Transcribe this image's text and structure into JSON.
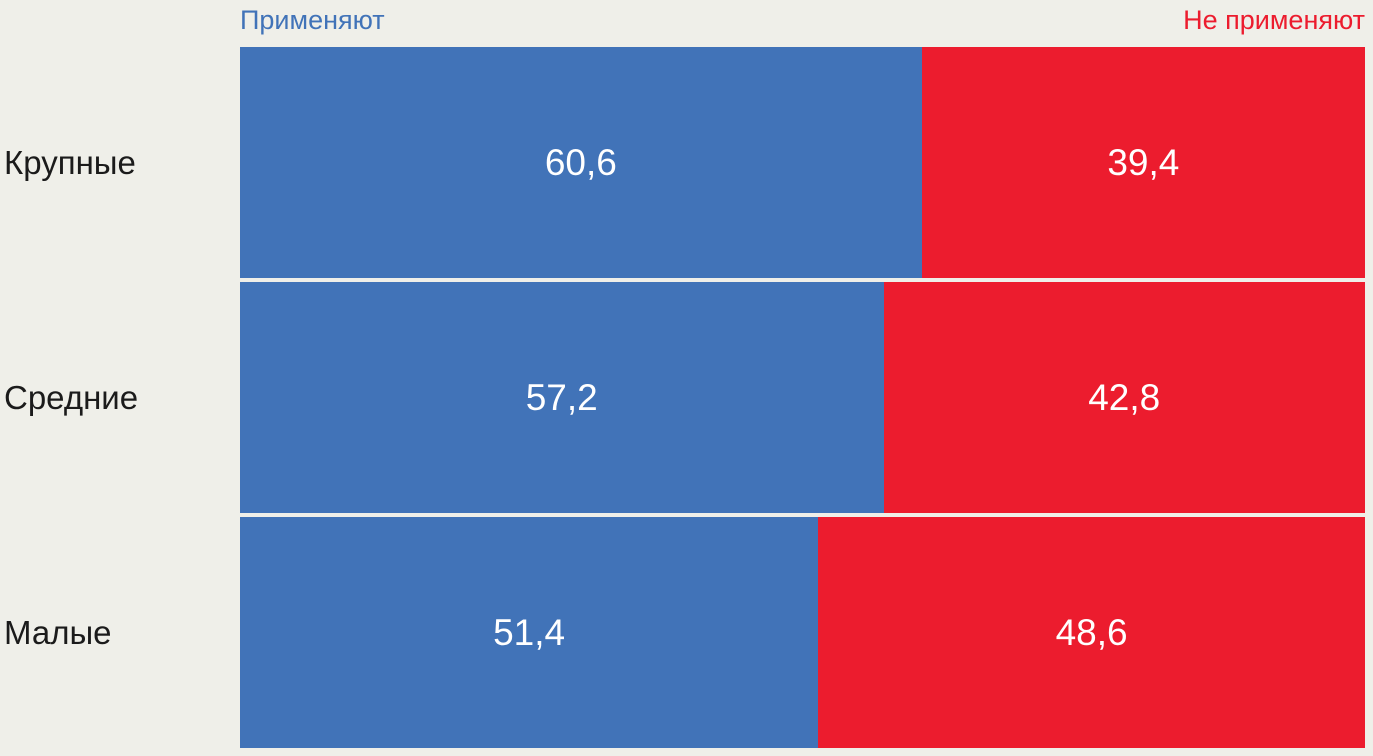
{
  "chart_data": {
    "type": "bar",
    "subtype": "horizontal-stacked-100-percent",
    "title": "",
    "categories": [
      "Крупные",
      "Средние",
      "Малые"
    ],
    "series": [
      {
        "name": "Применяют",
        "color": "#4173b8",
        "values": [
          60.6,
          57.2,
          51.4
        ]
      },
      {
        "name": "Не применяют",
        "color": "#ec1c2e",
        "values": [
          39.4,
          42.8,
          48.6
        ]
      }
    ],
    "value_labels": [
      [
        "60,6",
        "39,4"
      ],
      [
        "57,2",
        "42,8"
      ],
      [
        "51,4",
        "48,6"
      ]
    ],
    "xlim": [
      0,
      100
    ],
    "grid": false,
    "legend_position": "top",
    "background_color": "#efefe9",
    "category_label_color": "#1b1b1b",
    "value_label_color": "#ffffff"
  }
}
